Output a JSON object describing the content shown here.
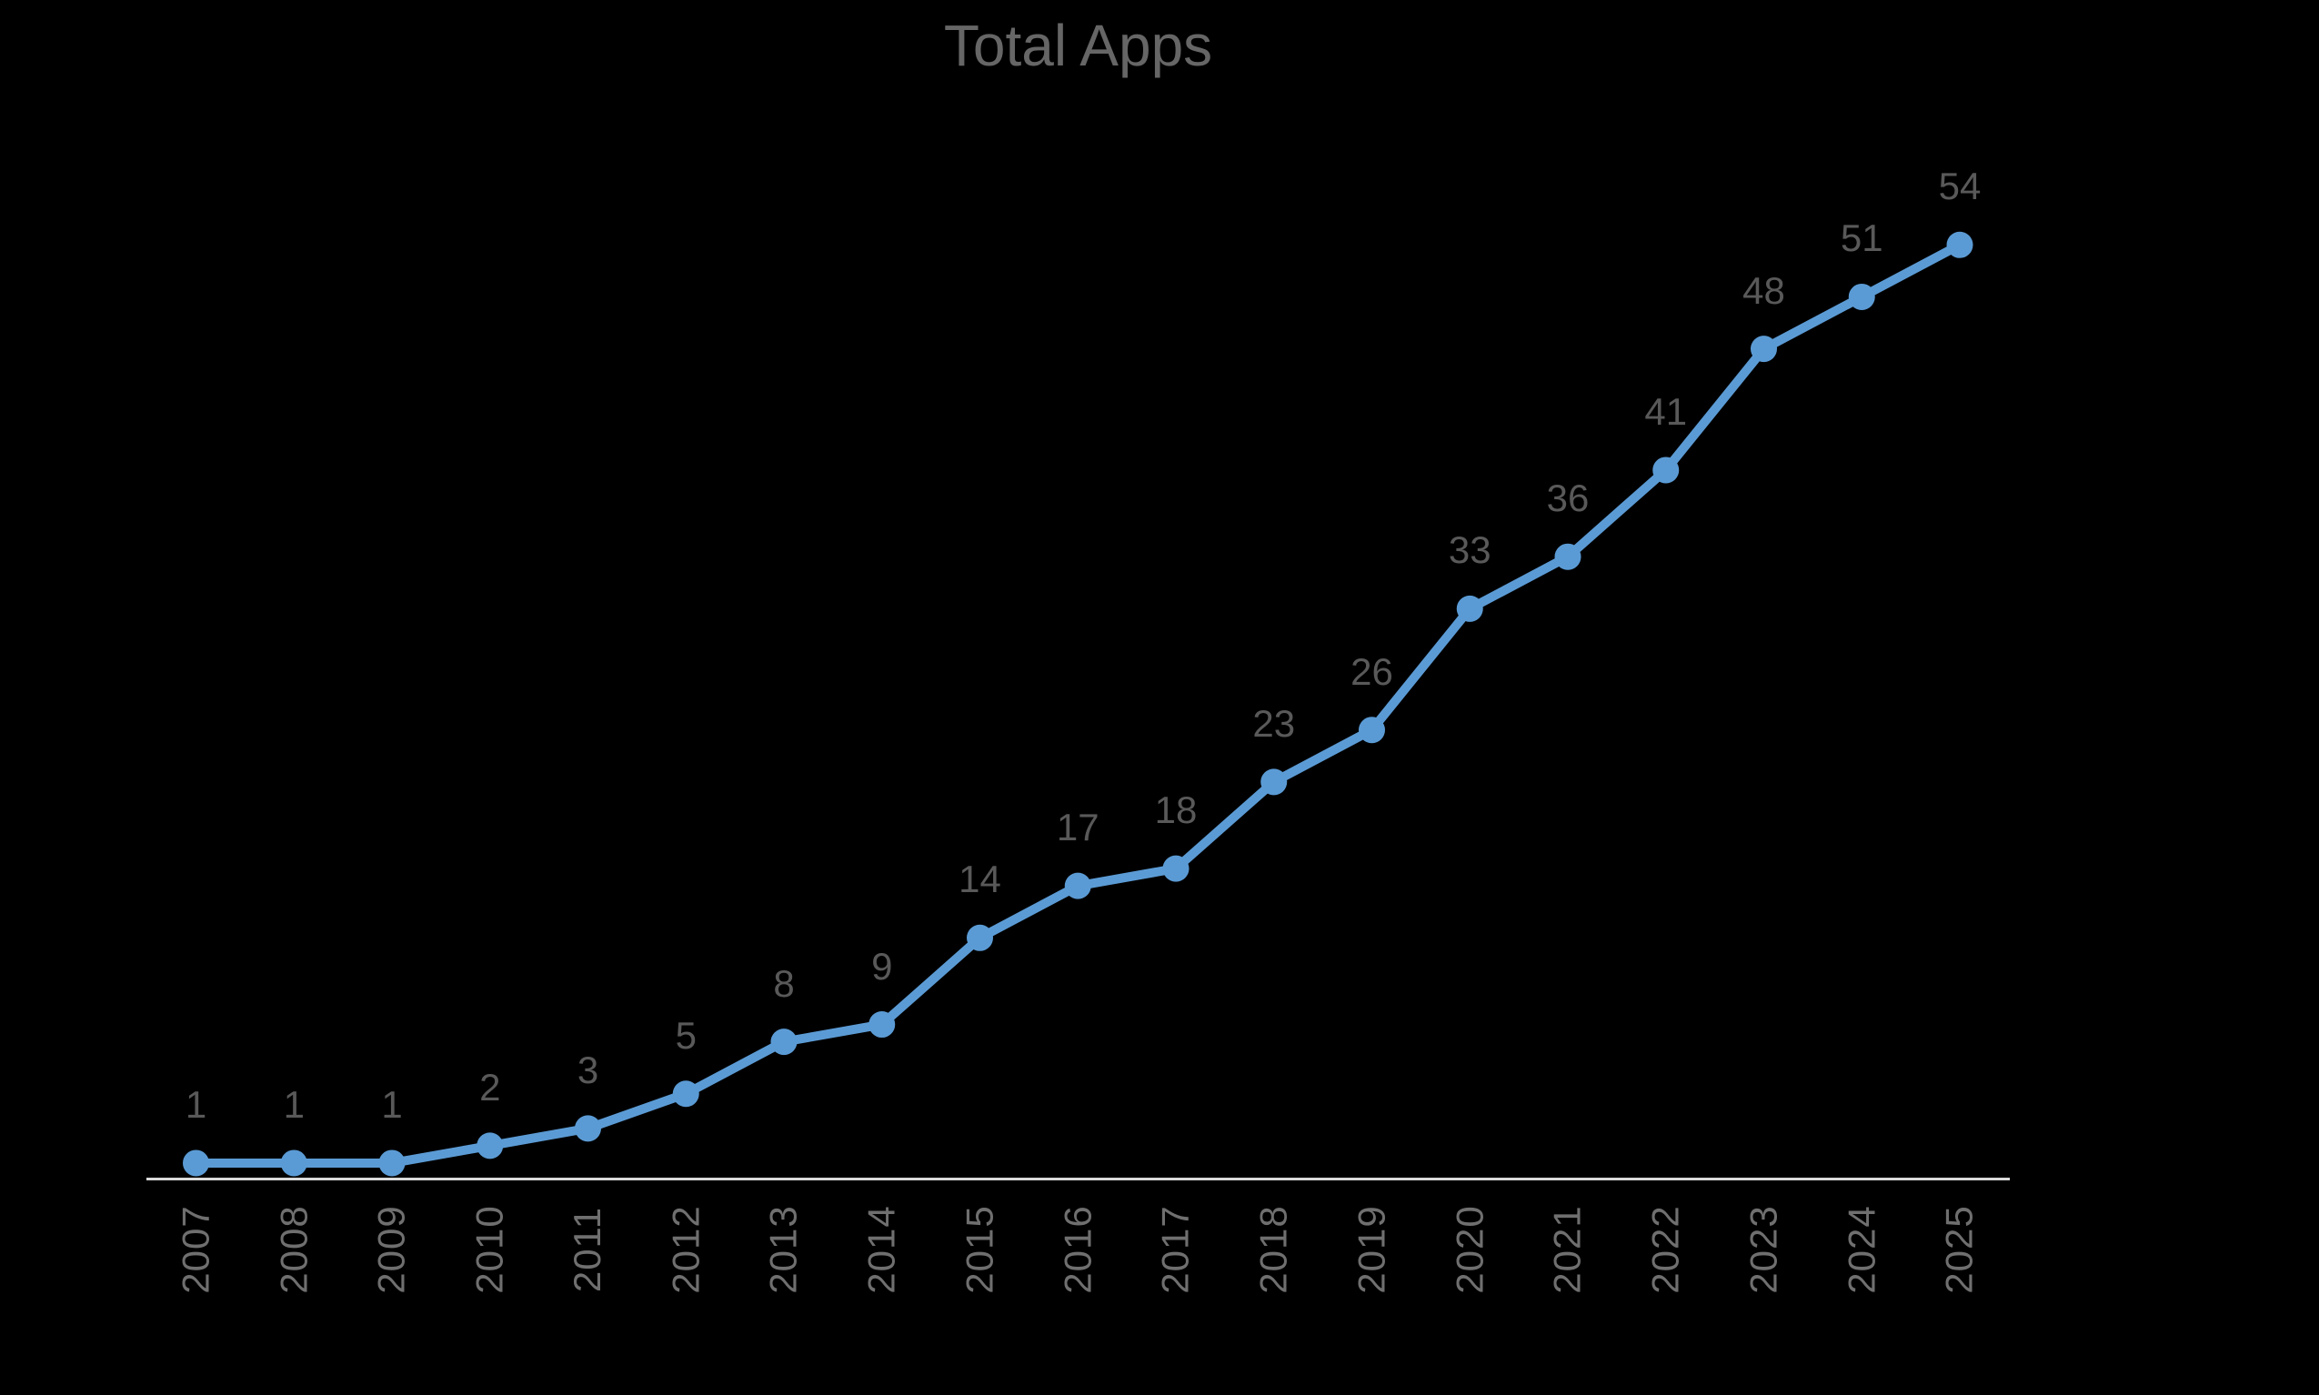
{
  "chart_data": {
    "type": "line",
    "title": "Total Apps",
    "categories": [
      "2007",
      "2008",
      "2009",
      "2010",
      "2011",
      "2012",
      "2013",
      "2014",
      "2015",
      "2016",
      "2017",
      "2018",
      "2019",
      "2020",
      "2021",
      "2022",
      "2023",
      "2024",
      "2025"
    ],
    "series": [
      {
        "name": "Total Apps",
        "values": [
          1,
          1,
          1,
          2,
          3,
          5,
          8,
          9,
          14,
          17,
          18,
          23,
          26,
          33,
          36,
          41,
          48,
          51,
          54
        ]
      }
    ],
    "values": [
      1,
      1,
      1,
      2,
      3,
      5,
      8,
      9,
      14,
      17,
      18,
      23,
      26,
      33,
      36,
      41,
      48,
      51,
      54
    ],
    "xlabel": "",
    "ylabel": "",
    "ylim": [
      0,
      54
    ],
    "grid": false,
    "legend": false,
    "y_axis_visible": false,
    "data_label_position": "above",
    "x_tick_rotation": -90,
    "colors": {
      "line": "#5b9bd5",
      "marker": "#5b9bd5",
      "axis_line": "#d9d9d9",
      "title_text": "#666666",
      "data_label_text": "#595959",
      "axis_label_text": "#6f6f6f",
      "background": "#000000"
    }
  }
}
